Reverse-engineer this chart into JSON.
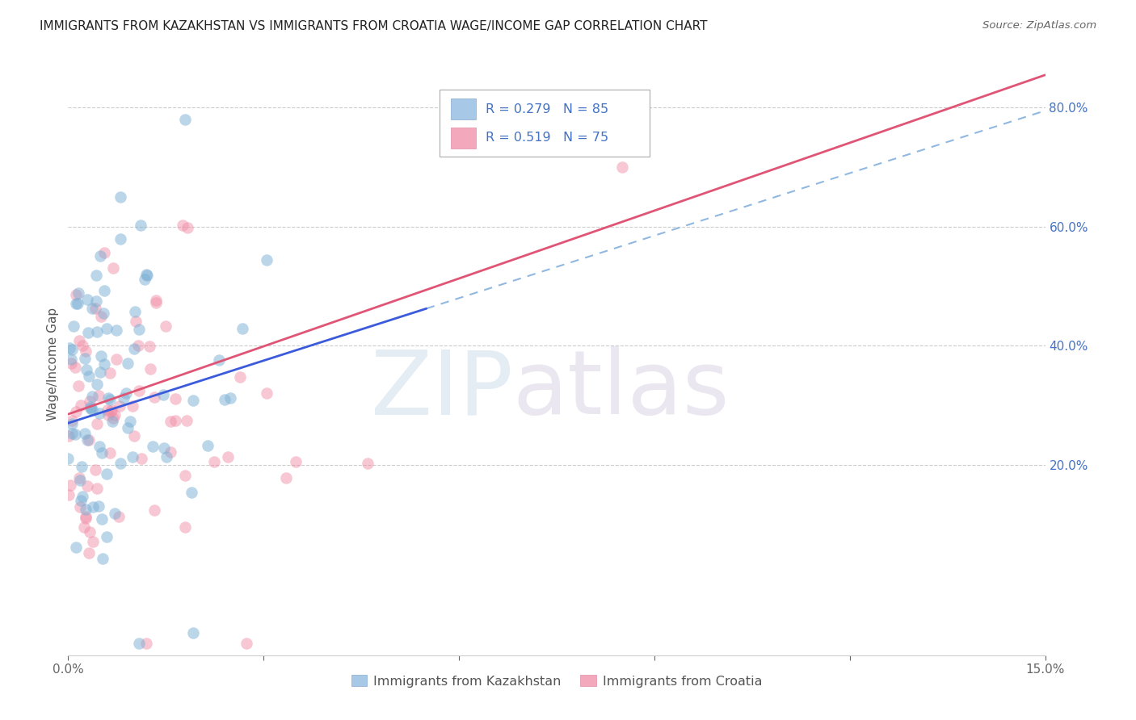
{
  "title": "IMMIGRANTS FROM KAZAKHSTAN VS IMMIGRANTS FROM CROATIA WAGE/INCOME GAP CORRELATION CHART",
  "source": "Source: ZipAtlas.com",
  "ylabel": "Wage/Income Gap",
  "kaz_color": "#7bafd4",
  "kaz_color_alpha": 0.5,
  "cro_color": "#f090a8",
  "cro_color_alpha": 0.5,
  "scatter_size": 110,
  "xlim": [
    0.0,
    0.15
  ],
  "ylim": [
    -0.12,
    0.86
  ],
  "kaz_line_color": "#3b5bdb",
  "kaz_line_dashed_color": "#90b8e0",
  "cro_line_color": "#e05575",
  "background_color": "#ffffff",
  "grid_color": "#cccccc",
  "ytick_color": "#4472c4",
  "seed": 7,
  "kaz_legend_color": "#a8c8e8",
  "cro_legend_color": "#f4a8bc"
}
